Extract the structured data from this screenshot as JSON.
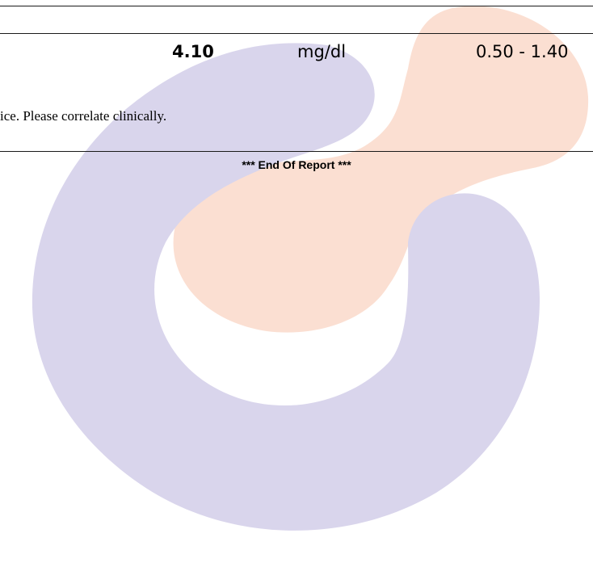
{
  "result": {
    "value": "4.10",
    "unit": "mg/dl",
    "reference_range": "0.50 - 1.40"
  },
  "note": {
    "text": "ice. Please correlate clinically."
  },
  "footer": {
    "end_of_report": "*** End Of Report ***"
  },
  "watermark": {
    "icon": "lab-logo-watermark-icon",
    "colors": {
      "purple": "#d9d5ec",
      "peach": "#fbdfd2"
    }
  }
}
